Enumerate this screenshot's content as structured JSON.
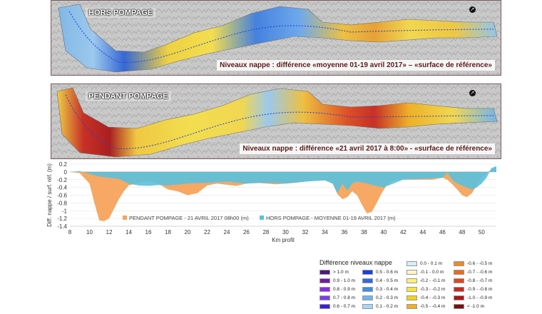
{
  "map_top": {
    "title": "HORS POMPAGE",
    "caption": "Niveaux nappe : différence «moyenne 01-19 avril 2017» – «surface de référence»",
    "icon": "north-arrow-icon"
  },
  "map_bottom": {
    "title": "PENDANT POMPAGE",
    "caption": "Niveaux nappe : différence «21 avril 2017 à 8:00» - «surface de référence»",
    "icon": "north-arrow-icon"
  },
  "chart_data": {
    "type": "area",
    "xlabel": "Km profil",
    "ylabel": "Diff. nappe / surf. réf. (m)",
    "xlim": [
      8,
      51.5
    ],
    "ylim": [
      -1.4,
      0.2
    ],
    "xticks": [
      "8",
      "10",
      "12",
      "14",
      "16",
      "18",
      "20",
      "22",
      "24",
      "26",
      "28",
      "30",
      "32",
      "34",
      "36",
      "38",
      "40",
      "42",
      "44",
      "46",
      "48",
      "50"
    ],
    "yticks": [
      "0.2",
      "0",
      "-0.2",
      "-0.4",
      "-0.6",
      "-0.8",
      "-1",
      "-1.2",
      "-1.4"
    ],
    "legend_position": "inside-bottom",
    "series": [
      {
        "name": "PENDANT POMPAGE - 21 AVRIL 2017 08h00 (m)",
        "color": "#f5a35c",
        "x": [
          8,
          9,
          10,
          10.5,
          11,
          11.5,
          12,
          12.5,
          13,
          13.5,
          14,
          15,
          16,
          17,
          18,
          19,
          20,
          21,
          22,
          23,
          24,
          25,
          26,
          27,
          28,
          29,
          30,
          31,
          32,
          33,
          34,
          34.8,
          35.3,
          35.8,
          36.3,
          36.8,
          37.3,
          37.8,
          38.3,
          38.8,
          39.3,
          39.8,
          40.3,
          41,
          42,
          43,
          44,
          45,
          46,
          46.5,
          47,
          47.5,
          48,
          48.5,
          49,
          49.5,
          50,
          50.5,
          51,
          51.5
        ],
        "y": [
          0,
          -0.03,
          -0.3,
          -0.8,
          -1.25,
          -1.27,
          -1.2,
          -0.95,
          -0.7,
          -0.5,
          -0.35,
          -0.28,
          -0.25,
          -0.3,
          -0.45,
          -0.5,
          -0.6,
          -0.55,
          -0.35,
          -0.3,
          -0.33,
          -0.36,
          -0.3,
          -0.28,
          -0.3,
          -0.32,
          -0.3,
          -0.28,
          -0.25,
          -0.22,
          -0.2,
          -0.3,
          -0.58,
          -0.7,
          -0.65,
          -0.5,
          -0.6,
          -0.85,
          -1.07,
          -1.03,
          -0.8,
          -0.55,
          -0.35,
          -0.22,
          -0.2,
          -0.2,
          -0.2,
          -0.2,
          -0.15,
          -0.2,
          -0.32,
          -0.45,
          -0.6,
          -0.65,
          -0.55,
          -0.35,
          -0.15,
          -0.05,
          0.08,
          0.12
        ]
      },
      {
        "name": "HORS POMPAGE - MOYENNE 01-19 AVRIL 2017 (m)",
        "color": "#5bc0de",
        "x": [
          8,
          9,
          10,
          11,
          12,
          13,
          14,
          15,
          16,
          17,
          18,
          20,
          22,
          24,
          26,
          28,
          30,
          32,
          34,
          34.8,
          35.3,
          35.8,
          36.3,
          36.8,
          37.3,
          38,
          39,
          40,
          41,
          42,
          44,
          46,
          46.5,
          47,
          47.5,
          48,
          48.5,
          49,
          49.5,
          50,
          50.5,
          51,
          51.5
        ],
        "y": [
          0,
          0.02,
          -0.05,
          -0.12,
          -0.15,
          -0.18,
          -0.3,
          -0.35,
          -0.36,
          -0.34,
          -0.35,
          -0.3,
          -0.28,
          -0.25,
          -0.3,
          -0.28,
          -0.3,
          -0.25,
          -0.22,
          -0.3,
          -0.55,
          -0.3,
          -0.48,
          -0.3,
          -0.25,
          -0.28,
          -0.35,
          -0.4,
          -0.3,
          -0.2,
          -0.18,
          -0.15,
          -0.02,
          -0.2,
          -0.3,
          -0.35,
          -0.4,
          -0.45,
          -0.4,
          -0.3,
          -0.15,
          0.1,
          0.15
        ]
      }
    ]
  },
  "legend": {
    "title": "Différence niveaux nappe",
    "columns": [
      [
        {
          "label": "> 1.0 m",
          "color": "#4b1b7a"
        },
        {
          "label": "0.9 - 1.0 m",
          "color": "#6a1fa0"
        },
        {
          "label": "0.8 - 0.9 m",
          "color": "#8a2be2"
        },
        {
          "label": "0.7 - 0.8 m",
          "color": "#7b3fe4"
        },
        {
          "label": "0.6 - 0.7 m",
          "color": "#3a1fd6"
        }
      ],
      [
        {
          "label": "0.5 - 0.6 m",
          "color": "#1f3fd9"
        },
        {
          "label": "0.4 - 0.5 m",
          "color": "#2f6ae0"
        },
        {
          "label": "0.3 - 0.4 m",
          "color": "#3f8de6"
        },
        {
          "label": "0.2 - 0.3 m",
          "color": "#6fb4ee"
        },
        {
          "label": "0.1 - 0.2 m",
          "color": "#a9d6f5"
        }
      ],
      [
        {
          "label": "0.0 - 0.1 m",
          "color": "#d6eefa"
        },
        {
          "label": "-0.1 - 0.0 m",
          "color": "#fff4c8"
        },
        {
          "label": "-0.2 - -0.1 m",
          "color": "#fdf07a"
        },
        {
          "label": "-0.3 - -0.2 m",
          "color": "#f6e63a"
        },
        {
          "label": "-0.4 - -0.3 m",
          "color": "#f4d21e"
        },
        {
          "label": "-0.5 - -0.4 m",
          "color": "#f0b020"
        }
      ],
      [
        {
          "label": "-0.6 - -0.5 m",
          "color": "#f08a1e"
        },
        {
          "label": "-0.7 - -0.6 m",
          "color": "#ea6a1e"
        },
        {
          "label": "-0.8 - -0.7 m",
          "color": "#e0461e"
        },
        {
          "label": "-0.9 - -0.8 m",
          "color": "#c82a1e"
        },
        {
          "label": "-1.0 - -0.9 m",
          "color": "#a8181a"
        },
        {
          "label": "< -1.0 m",
          "color": "#7a0e12"
        }
      ]
    ]
  }
}
